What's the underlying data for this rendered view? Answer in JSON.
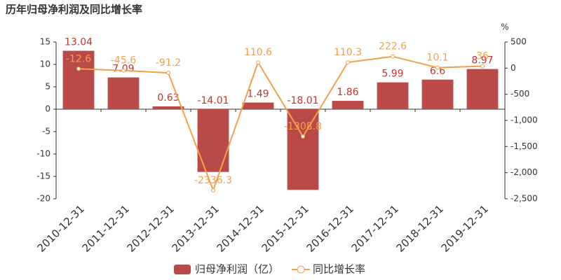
{
  "chart_data": {
    "type": "bar",
    "title": "历年归母净利润及同比增长率",
    "y2_unit": "%",
    "categories": [
      "2010-12-31",
      "2011-12-31",
      "2012-12-31",
      "2013-12-31",
      "2014-12-31",
      "2015-12-31",
      "2016-12-31",
      "2017-12-31",
      "2018-12-31",
      "2019-12-31"
    ],
    "series": [
      {
        "name": "归母净利润（亿）",
        "type": "bar",
        "color": "#b94a48",
        "label_color": "#c23531",
        "values": [
          13.04,
          7.09,
          0.63,
          -14.01,
          1.49,
          -18.01,
          1.86,
          5.99,
          6.6,
          8.97
        ]
      },
      {
        "name": "同比增长率",
        "type": "line",
        "axis": "y2",
        "color": "#f3a04a",
        "values": [
          -12.6,
          -45.6,
          -91.2,
          -2336.3,
          110.6,
          -1308.8,
          110.3,
          222.6,
          10.1,
          36
        ]
      }
    ],
    "ylim": [
      -20,
      15
    ],
    "yticks": [
      -20,
      -15,
      -10,
      -5,
      0,
      5,
      10,
      15
    ],
    "y2lim": [
      -2500,
      500
    ],
    "y2ticks": [
      {
        "value": -2500,
        "label": "-2,500"
      },
      {
        "value": -2000,
        "label": "-2,000"
      },
      {
        "value": -1500,
        "label": "-1,500"
      },
      {
        "value": -1000,
        "label": "-1,000"
      },
      -500,
      0,
      500
    ]
  }
}
